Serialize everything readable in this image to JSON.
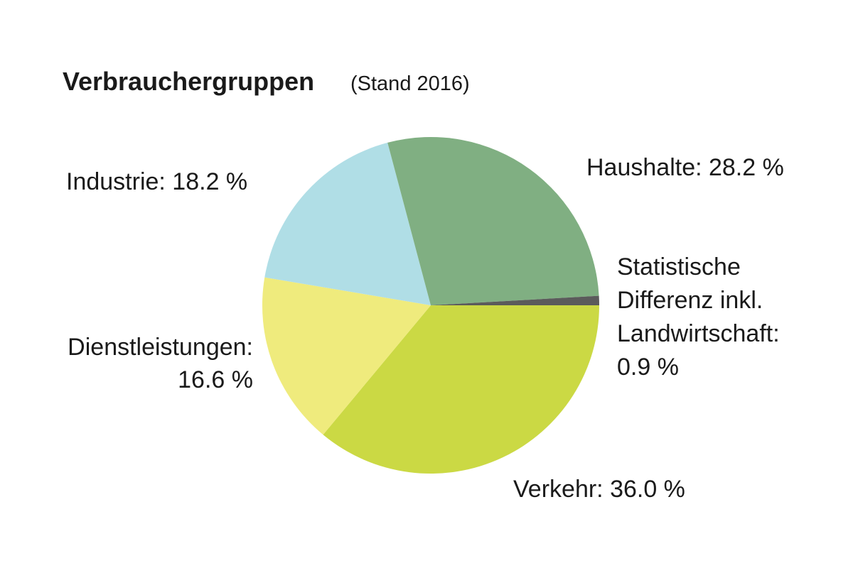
{
  "chart_data": {
    "type": "pie",
    "title": "Verbrauchergruppen",
    "subtitle": "(Stand 2016)",
    "categories": [
      "Verkehr",
      "Dienstleistungen",
      "Industrie",
      "Haushalte",
      "Statistische Differenz inkl. Landwirtschaft"
    ],
    "values": [
      36.0,
      16.6,
      18.2,
      28.2,
      0.9
    ],
    "value_labels": [
      [
        "Verkehr: 36.0 %"
      ],
      [
        "Dienstleistungen:",
        "16.6 %"
      ],
      [
        "Industrie: 18.2 %"
      ],
      [
        "Haushalte: 28.2 %"
      ],
      [
        "Statistische",
        "Differenz inkl.",
        "Landwirtschaft:",
        "0.9 %"
      ]
    ],
    "colors": [
      "#cbd944",
      "#efeb7d",
      "#b0dee6",
      "#80af82",
      "#5b5b5b"
    ]
  }
}
